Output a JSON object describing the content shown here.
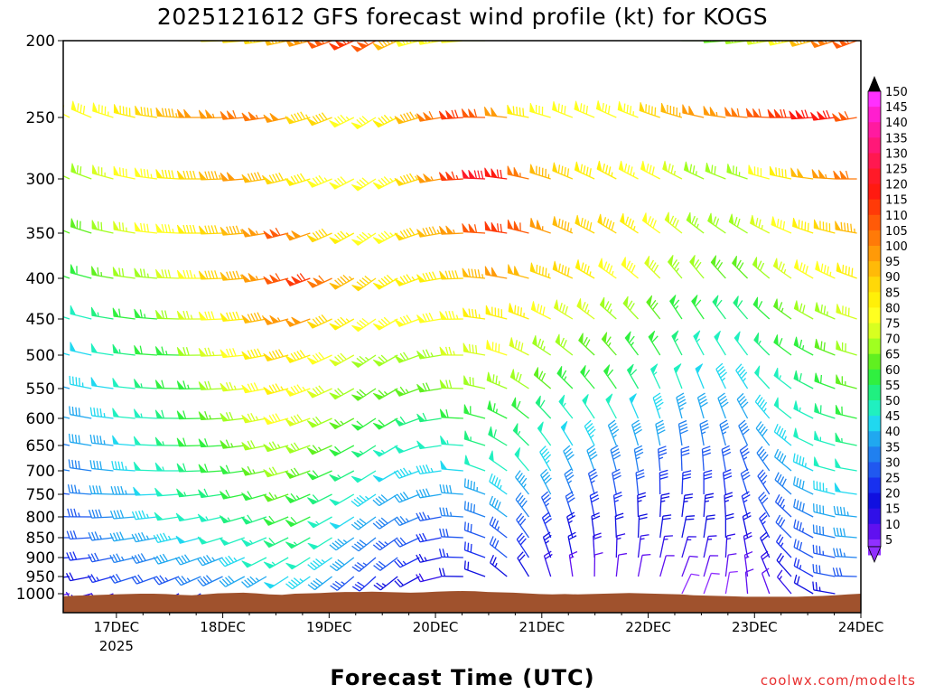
{
  "chart_data": {
    "type": "wind-barb-profile",
    "title": "2025121612 GFS forecast wind profile (kt) for KOGS",
    "xlabel": "Forecast Time (UTC)",
    "credit": "coolwx.com/modelts",
    "y_ticks": [
      "200",
      "250",
      "300",
      "350",
      "400",
      "450",
      "500",
      "550",
      "600",
      "650",
      "700",
      "750",
      "800",
      "850",
      "900",
      "950",
      "1000"
    ],
    "y_values": [
      200,
      250,
      300,
      350,
      400,
      450,
      500,
      550,
      600,
      650,
      700,
      750,
      800,
      850,
      900,
      950,
      1000
    ],
    "y_range": [
      200,
      1050
    ],
    "x_range_days": [
      16.5,
      24
    ],
    "x_ticks": [
      {
        "label": "17DEC",
        "sublabel": "2025",
        "day": 17
      },
      {
        "label": "18DEC",
        "sublabel": "",
        "day": 18
      },
      {
        "label": "19DEC",
        "sublabel": "",
        "day": 19
      },
      {
        "label": "20DEC",
        "sublabel": "",
        "day": 20
      },
      {
        "label": "21DEC",
        "sublabel": "",
        "day": 21
      },
      {
        "label": "22DEC",
        "sublabel": "",
        "day": 22
      },
      {
        "label": "23DEC",
        "sublabel": "",
        "day": 23
      },
      {
        "label": "24DEC",
        "sublabel": "",
        "day": 24
      }
    ],
    "colorbar_labels": [
      "150",
      "145",
      "140",
      "135",
      "130",
      "125",
      "120",
      "115",
      "110",
      "105",
      "100",
      "95",
      "90",
      "85",
      "80",
      "75",
      "70",
      "65",
      "60",
      "55",
      "50",
      "45",
      "40",
      "35",
      "30",
      "25",
      "20",
      "15",
      "10",
      "5"
    ],
    "colorbar_colors": [
      "#ff30ff",
      "#ff1ecf",
      "#ff1aa0",
      "#ff1878",
      "#ff1850",
      "#ff1a28",
      "#ff1a10",
      "#ff3a08",
      "#ff5a08",
      "#ff7a08",
      "#ff9a08",
      "#ffba08",
      "#ffd808",
      "#fff008",
      "#ffff20",
      "#d8ff20",
      "#a0ff20",
      "#60f020",
      "#30f040",
      "#20f080",
      "#20f0c0",
      "#20d8f0",
      "#20a8f0",
      "#2080f0",
      "#2058f0",
      "#1830f0",
      "#1010e0",
      "#3010e8",
      "#6010f0",
      "#9030ff"
    ],
    "terrain_pressure": [
      1007,
      1005,
      1004,
      1003,
      1002,
      1001,
      1000,
      1000,
      1001,
      1003,
      1004,
      1002,
      999,
      998,
      997,
      999,
      1002,
      1003,
      1000,
      999,
      998,
      996,
      995,
      995,
      994,
      995,
      996,
      997,
      996,
      994,
      993,
      992,
      993,
      995,
      996,
      997,
      999,
      1001,
      1002,
      1001,
      1002,
      1001,
      1000,
      999,
      998,
      999,
      1000,
      1001,
      1002,
      1004,
      1005,
      1006,
      1007,
      1008,
      1008,
      1008,
      1008,
      1008,
      1007,
      1006,
      1004,
      1002,
      1000
    ],
    "speed_rows_kt": [
      {
        "p": 200,
        "v": [
          76,
          76,
          78,
          80,
          82,
          84,
          86,
          88,
          90,
          92,
          96,
          104,
          110,
          116,
          110,
          96,
          84,
          82,
          80,
          78,
          78,
          80,
          82,
          84,
          80,
          76,
          74,
          72,
          70,
          68,
          66,
          70,
          76,
          84,
          96,
          106,
          112
        ]
      },
      {
        "p": 250,
        "v": [
          80,
          82,
          84,
          88,
          92,
          96,
          100,
          104,
          108,
          106,
          100,
          94,
          90,
          84,
          80,
          86,
          96,
          108,
          118,
          112,
          100,
          88,
          82,
          80,
          80,
          80,
          84,
          90,
          96,
          100,
          104,
          108,
          112,
          118,
          122,
          120,
          110
        ]
      },
      {
        "p": 300,
        "v": [
          70,
          72,
          76,
          80,
          84,
          88,
          92,
          96,
          100,
          96,
          92,
          88,
          84,
          82,
          80,
          84,
          94,
          104,
          116,
          128,
          120,
          106,
          96,
          90,
          88,
          86,
          84,
          80,
          76,
          74,
          72,
          74,
          80,
          88,
          98,
          104,
          108
        ]
      },
      {
        "p": 350,
        "v": [
          66,
          68,
          72,
          76,
          80,
          84,
          88,
          92,
          96,
          104,
          110,
          100,
          92,
          86,
          84,
          84,
          90,
          96,
          104,
          112,
          118,
          112,
          104,
          96,
          92,
          90,
          86,
          82,
          78,
          74,
          72,
          72,
          76,
          82,
          88,
          92,
          96
        ]
      },
      {
        "p": 400,
        "v": [
          60,
          62,
          66,
          70,
          74,
          78,
          84,
          90,
          96,
          104,
          112,
          118,
          108,
          96,
          90,
          88,
          86,
          88,
          92,
          96,
          100,
          98,
          94,
          90,
          86,
          84,
          82,
          78,
          74,
          70,
          68,
          68,
          72,
          76,
          80,
          84,
          88
        ]
      },
      {
        "p": 450,
        "v": [
          50,
          52,
          56,
          60,
          64,
          70,
          76,
          82,
          88,
          96,
          104,
          100,
          92,
          86,
          82,
          80,
          80,
          82,
          84,
          86,
          88,
          86,
          82,
          78,
          76,
          74,
          72,
          68,
          64,
          60,
          58,
          58,
          62,
          66,
          70,
          74,
          78
        ]
      },
      {
        "p": 500,
        "v": [
          46,
          48,
          52,
          56,
          60,
          64,
          70,
          76,
          82,
          88,
          92,
          88,
          82,
          78,
          74,
          72,
          72,
          74,
          76,
          78,
          80,
          78,
          74,
          70,
          68,
          66,
          64,
          60,
          56,
          54,
          52,
          52,
          56,
          60,
          64,
          68,
          72
        ]
      },
      {
        "p": 550,
        "v": [
          44,
          46,
          48,
          52,
          56,
          60,
          64,
          70,
          76,
          82,
          86,
          84,
          78,
          72,
          68,
          66,
          66,
          68,
          70,
          72,
          74,
          72,
          68,
          64,
          62,
          60,
          58,
          54,
          50,
          48,
          46,
          46,
          50,
          54,
          58,
          62,
          66
        ]
      },
      {
        "p": 600,
        "v": [
          40,
          42,
          46,
          50,
          54,
          58,
          62,
          66,
          70,
          76,
          80,
          78,
          72,
          66,
          62,
          60,
          58,
          58,
          60,
          62,
          64,
          62,
          58,
          54,
          52,
          50,
          48,
          46,
          44,
          42,
          40,
          42,
          46,
          50,
          54,
          58,
          62
        ]
      },
      {
        "p": 650,
        "v": [
          38,
          40,
          44,
          48,
          52,
          56,
          60,
          62,
          66,
          70,
          74,
          72,
          66,
          60,
          56,
          54,
          52,
          52,
          54,
          56,
          58,
          56,
          52,
          48,
          46,
          44,
          42,
          40,
          38,
          36,
          36,
          38,
          42,
          46,
          50,
          54,
          56
        ]
      },
      {
        "p": 700,
        "v": [
          36,
          38,
          42,
          46,
          50,
          54,
          58,
          60,
          62,
          66,
          70,
          68,
          62,
          56,
          52,
          48,
          46,
          46,
          48,
          50,
          52,
          50,
          46,
          42,
          40,
          38,
          36,
          34,
          32,
          32,
          32,
          34,
          38,
          42,
          46,
          50,
          52
        ]
      },
      {
        "p": 750,
        "v": [
          34,
          36,
          40,
          44,
          48,
          52,
          56,
          58,
          60,
          62,
          66,
          64,
          58,
          52,
          46,
          42,
          40,
          40,
          42,
          44,
          46,
          44,
          40,
          36,
          34,
          32,
          30,
          28,
          28,
          28,
          28,
          30,
          34,
          38,
          42,
          46,
          48
        ]
      },
      {
        "p": 800,
        "v": [
          32,
          34,
          38,
          42,
          46,
          50,
          52,
          54,
          56,
          58,
          62,
          60,
          54,
          48,
          42,
          38,
          36,
          34,
          36,
          38,
          40,
          38,
          34,
          30,
          28,
          26,
          24,
          24,
          24,
          24,
          24,
          26,
          30,
          34,
          38,
          42,
          44
        ]
      },
      {
        "p": 850,
        "v": [
          30,
          32,
          36,
          40,
          44,
          46,
          48,
          50,
          52,
          54,
          58,
          56,
          50,
          44,
          38,
          34,
          30,
          28,
          30,
          32,
          34,
          32,
          28,
          24,
          22,
          20,
          20,
          20,
          20,
          20,
          20,
          22,
          26,
          30,
          34,
          38,
          40
        ]
      },
      {
        "p": 900,
        "v": [
          26,
          28,
          32,
          36,
          38,
          40,
          42,
          44,
          46,
          50,
          54,
          52,
          46,
          40,
          34,
          30,
          26,
          24,
          26,
          28,
          30,
          28,
          24,
          20,
          18,
          16,
          16,
          16,
          16,
          16,
          16,
          18,
          22,
          26,
          30,
          34,
          36
        ]
      },
      {
        "p": 950,
        "v": [
          20,
          22,
          26,
          30,
          32,
          34,
          36,
          38,
          40,
          44,
          48,
          46,
          40,
          34,
          28,
          24,
          20,
          18,
          20,
          22,
          24,
          22,
          18,
          14,
          12,
          12,
          12,
          12,
          12,
          12,
          12,
          14,
          18,
          22,
          26,
          30,
          32
        ]
      },
      {
        "p": 1000,
        "v": [
          14,
          16,
          18,
          20,
          22,
          24,
          26,
          28,
          30,
          34,
          38,
          36,
          30,
          24,
          20,
          16,
          14,
          12,
          14,
          16,
          18,
          16,
          12,
          10,
          8,
          8,
          8,
          8,
          8,
          8,
          8,
          10,
          12,
          16,
          20,
          24,
          26
        ]
      }
    ],
    "direction_rows_deg": [
      {
        "p": 200,
        "v": [
          300,
          295,
          290,
          285,
          280,
          275,
          270,
          268,
          265,
          262,
          258,
          255,
          250,
          245,
          240,
          245,
          255,
          260,
          265,
          270,
          275,
          280,
          285,
          290,
          290,
          290,
          285,
          280,
          275,
          270,
          265,
          262,
          260,
          258,
          255,
          252,
          250
        ]
      },
      {
        "p": 400,
        "v": [
          290,
          285,
          280,
          278,
          275,
          272,
          270,
          268,
          265,
          260,
          255,
          250,
          245,
          240,
          235,
          240,
          250,
          260,
          268,
          275,
          280,
          285,
          290,
          295,
          300,
          305,
          310,
          315,
          320,
          320,
          318,
          315,
          310,
          305,
          300,
          295,
          290
        ]
      },
      {
        "p": 700,
        "v": [
          280,
          278,
          276,
          274,
          272,
          270,
          268,
          266,
          262,
          258,
          254,
          250,
          246,
          242,
          238,
          240,
          250,
          262,
          275,
          290,
          305,
          320,
          330,
          335,
          340,
          345,
          350,
          355,
          358,
          356,
          350,
          340,
          325,
          310,
          295,
          285,
          280
        ]
      },
      {
        "p": 1000,
        "v": [
          260,
          255,
          250,
          248,
          246,
          244,
          242,
          240,
          238,
          236,
          234,
          232,
          230,
          228,
          226,
          230,
          240,
          255,
          270,
          290,
          310,
          330,
          345,
          355,
          5,
          10,
          15,
          20,
          25,
          20,
          10,
          355,
          340,
          320,
          300,
          280,
          270
        ]
      }
    ]
  }
}
